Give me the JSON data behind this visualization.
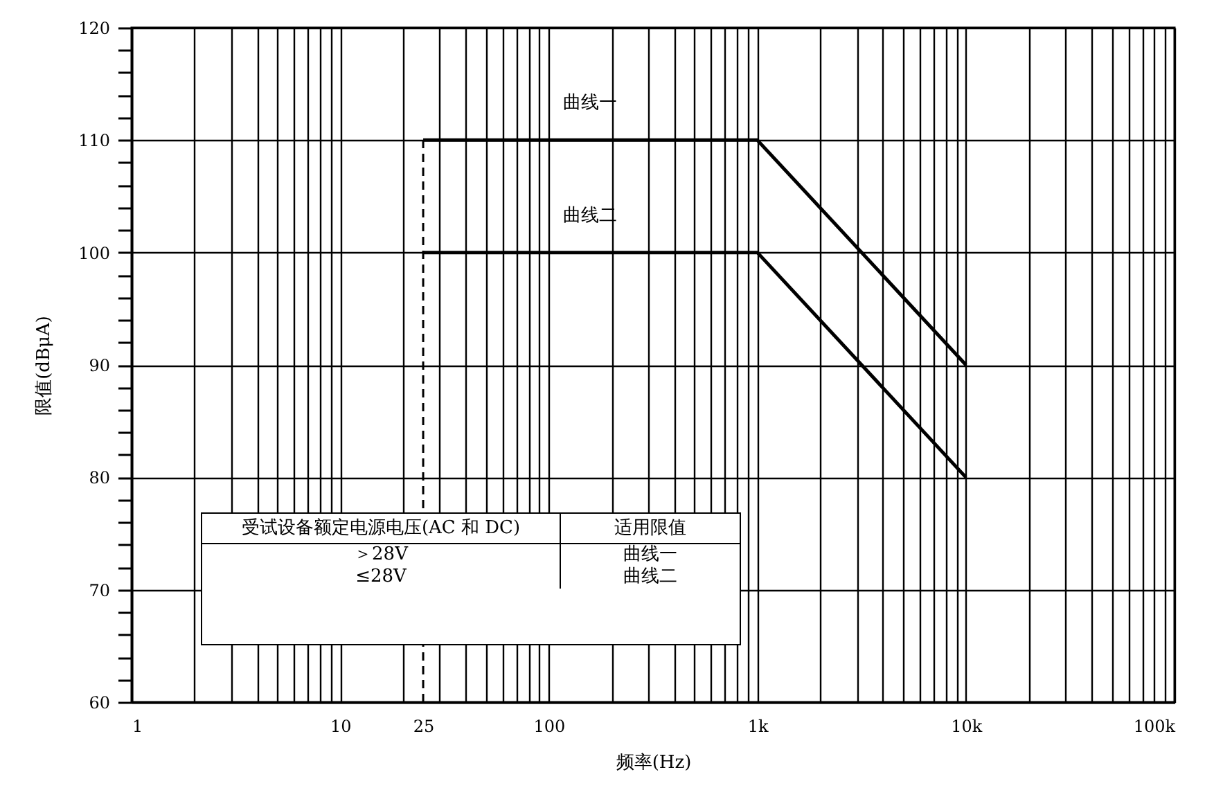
{
  "chart_data": {
    "type": "line",
    "xlabel": "频率(Hz)",
    "ylabel": "限值(dBμA)",
    "log": "x",
    "grid": true,
    "marker": "none",
    "xlim": [
      1,
      100000
    ],
    "ylim": [
      60,
      120
    ],
    "xticks": [
      1,
      {
        "value": 2,
        "label": null
      },
      {
        "value": 3,
        "label": null
      },
      {
        "value": 4,
        "label": null
      },
      {
        "value": 5,
        "label": null
      },
      {
        "value": 6,
        "label": null
      },
      {
        "value": 7,
        "label": null
      },
      {
        "value": 8,
        "label": null
      },
      {
        "value": 9,
        "label": null
      },
      10,
      {
        "value": 20,
        "label": null
      },
      25,
      {
        "value": 30,
        "label": null
      },
      {
        "value": 40,
        "label": null
      },
      {
        "value": 50,
        "label": null
      },
      {
        "value": 60,
        "label": null
      },
      {
        "value": 70,
        "label": null
      },
      {
        "value": 80,
        "label": null
      },
      {
        "value": 90,
        "label": null
      },
      100,
      {
        "value": 200,
        "label": null
      },
      {
        "value": 300,
        "label": null
      },
      {
        "value": 400,
        "label": null
      },
      {
        "value": 500,
        "label": null
      },
      {
        "value": 600,
        "label": null
      },
      {
        "value": 700,
        "label": null
      },
      {
        "value": 800,
        "label": null
      },
      {
        "value": 900,
        "label": null
      },
      {
        "value": 1000,
        "label": "1k"
      },
      {
        "value": 2000,
        "label": null
      },
      {
        "value": 3000,
        "label": null
      },
      {
        "value": 4000,
        "label": null
      },
      {
        "value": 5000,
        "label": null
      },
      {
        "value": 6000,
        "label": null
      },
      {
        "value": 7000,
        "label": null
      },
      {
        "value": 8000,
        "label": null
      },
      {
        "value": 9000,
        "label": null
      },
      {
        "value": 10000,
        "label": "10k"
      },
      {
        "value": 20000,
        "label": null
      },
      {
        "value": 30000,
        "label": null
      },
      {
        "value": 40000,
        "label": null
      },
      {
        "value": 50000,
        "label": null
      },
      {
        "value": 60000,
        "label": null
      },
      {
        "value": 70000,
        "label": null
      },
      {
        "value": 80000,
        "label": null
      },
      {
        "value": 90000,
        "label": null
      },
      {
        "value": 100000,
        "label": "100k"
      }
    ],
    "yticks": [
      60,
      {
        "value": 62,
        "label": null
      },
      {
        "value": 64,
        "label": null
      },
      {
        "value": 66,
        "label": null
      },
      {
        "value": 68,
        "label": null
      },
      70,
      {
        "value": 72,
        "label": null
      },
      {
        "value": 74,
        "label": null
      },
      {
        "value": 76,
        "label": null
      },
      {
        "value": 78,
        "label": null
      },
      80,
      {
        "value": 82,
        "label": null
      },
      {
        "value": 84,
        "label": null
      },
      {
        "value": 86,
        "label": null
      },
      {
        "value": 88,
        "label": null
      },
      90,
      {
        "value": 92,
        "label": null
      },
      {
        "value": 94,
        "label": null
      },
      {
        "value": 96,
        "label": null
      },
      {
        "value": 98,
        "label": null
      },
      100,
      {
        "value": 102,
        "label": null
      },
      {
        "value": 104,
        "label": null
      },
      {
        "value": 106,
        "label": null
      },
      {
        "value": 108,
        "label": null
      },
      110,
      {
        "value": 112,
        "label": null
      },
      {
        "value": 114,
        "label": null
      },
      {
        "value": 116,
        "label": null
      },
      {
        "value": 118,
        "label": null
      },
      120
    ],
    "series": [
      {
        "name": "曲线一",
        "color": "#000000",
        "line_style": "solid",
        "x": [
          25,
          1000,
          10000
        ],
        "values": [
          110,
          110,
          90
        ]
      },
      {
        "name": "曲线二",
        "color": "#000000",
        "line_style": "solid",
        "x": [
          25,
          1000,
          10000
        ],
        "values": [
          100,
          100,
          80
        ]
      },
      {
        "color": "#000000",
        "line_style": "dashed",
        "x": [
          25,
          25
        ],
        "values": [
          60,
          110
        ]
      }
    ],
    "annotations": [
      "受试设备额定电源电压(AC 和 DC)",
      "适用限值",
      "＞28V",
      "曲线一",
      "≤28V",
      "曲线二"
    ]
  }
}
